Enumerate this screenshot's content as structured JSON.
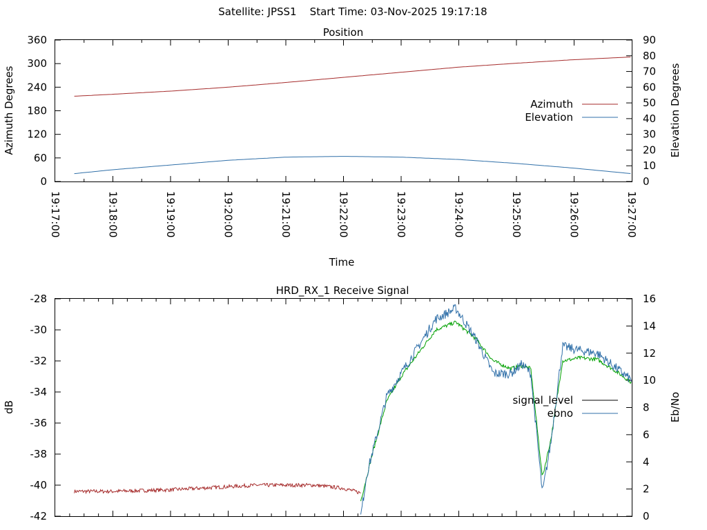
{
  "header": {
    "title": "Satellite: JPSS1    Start Time: 03-Nov-2025 19:17:18"
  },
  "chart_data": [
    {
      "type": "line",
      "title": "Position",
      "xlabel": "Time",
      "ylabel": "Azimuth Degrees",
      "y2label": "Elevation Degrees",
      "ylim": [
        0,
        360
      ],
      "y2lim": [
        0,
        90
      ],
      "yticks": [
        "0",
        "60",
        "120",
        "180",
        "240",
        "300",
        "360"
      ],
      "y2ticks": [
        "0",
        "10",
        "20",
        "30",
        "40",
        "50",
        "60",
        "70",
        "80",
        "90"
      ],
      "xticks": [
        "19:17:00",
        "19:18:00",
        "19:19:00",
        "19:20:00",
        "19:21:00",
        "19:22:00",
        "19:23:00",
        "19:24:00",
        "19:25:00",
        "19:26:00",
        "19:27:00"
      ],
      "xlim_minutes": [
        0,
        10
      ],
      "legend_position": "right",
      "series": [
        {
          "name": "Azimuth",
          "axis": "y",
          "color": "#a52a2a",
          "x_minutes": [
            0.33,
            1,
            2,
            3,
            4,
            5,
            6,
            7,
            8,
            9,
            10
          ],
          "values": [
            217,
            222,
            230,
            240,
            252,
            265,
            278,
            291,
            301,
            310,
            317
          ]
        },
        {
          "name": "Elevation",
          "axis": "y2",
          "color": "#2f6fa8",
          "x_minutes": [
            0.33,
            1,
            2,
            3,
            4,
            5,
            6,
            7,
            8,
            9,
            10
          ],
          "values": [
            5,
            7.5,
            10.5,
            13.5,
            15.5,
            16,
            15.5,
            14,
            11.5,
            8.5,
            5
          ]
        }
      ]
    },
    {
      "type": "line",
      "title": "HRD_RX_1 Receive Signal",
      "xlabel": "",
      "ylabel": "dB",
      "y2label": "Eb/No",
      "ylim": [
        -42,
        -28
      ],
      "y2lim": [
        0,
        16
      ],
      "yticks": [
        "-42",
        "-40",
        "-38",
        "-36",
        "-34",
        "-32",
        "-30",
        "-28"
      ],
      "y2ticks": [
        "0",
        "2",
        "4",
        "6",
        "8",
        "10",
        "12",
        "14",
        "16"
      ],
      "xlim_minutes": [
        0,
        10
      ],
      "legend_position": "right",
      "series": [
        {
          "name": "signal_level",
          "axis": "y",
          "legend_color": "#000000",
          "color": "#a52a2a",
          "x_minutes": [
            0.33,
            1,
            2,
            3,
            3.5,
            4,
            4.5,
            5,
            5.3
          ],
          "values": [
            -40.4,
            -40.4,
            -40.3,
            -40.1,
            -40.0,
            -40.0,
            -40.0,
            -40.2,
            -40.5
          ]
        },
        {
          "name": "",
          "axis": "y",
          "color": "#00a000",
          "x_minutes": [
            5.3,
            5.5,
            5.75,
            6.0,
            6.3,
            6.6,
            6.95,
            7.3,
            7.6,
            7.9,
            8.1,
            8.25,
            8.45,
            8.6,
            8.8,
            9.1,
            9.4,
            9.7,
            10
          ],
          "values": [
            -41.0,
            -38.0,
            -34.6,
            -33.0,
            -31.5,
            -30.0,
            -29.5,
            -30.6,
            -32.0,
            -32.5,
            -32.3,
            -32.5,
            -39.5,
            -37.0,
            -32.0,
            -31.8,
            -31.9,
            -32.6,
            -33.4
          ]
        },
        {
          "name": "ebno",
          "axis": "y2",
          "color": "#2f6fa8",
          "x_minutes": [
            5.3,
            5.4,
            5.75,
            6.0,
            6.3,
            6.6,
            6.95,
            7.3,
            7.6,
            7.9,
            8.1,
            8.25,
            8.45,
            8.6,
            8.8,
            9.1,
            9.4,
            9.7,
            10
          ],
          "values": [
            0,
            3.0,
            8.8,
            10.5,
            12.5,
            14.5,
            15.3,
            13.0,
            10.5,
            10.5,
            11.2,
            10.5,
            1.7,
            5.5,
            12.5,
            12.2,
            12.0,
            11.0,
            10.0
          ]
        }
      ]
    }
  ]
}
